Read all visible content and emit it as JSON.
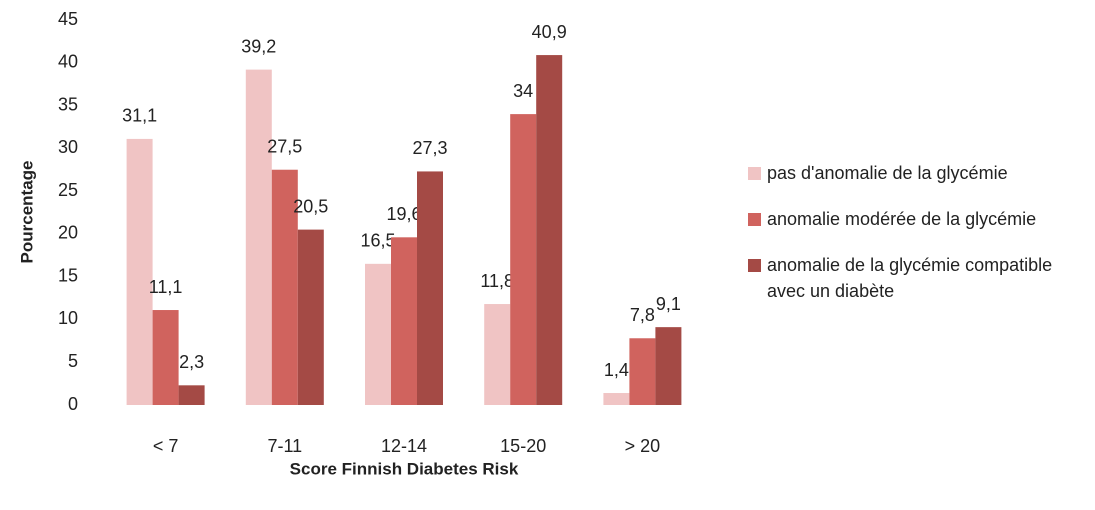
{
  "chart_data": {
    "type": "bar",
    "x_label": "Score Finnish Diabetes Risk",
    "y_label": "Pourcentage",
    "categories": [
      "< 7",
      "7-11",
      "12-14",
      "15-20",
      "> 20"
    ],
    "series": [
      {
        "name": "pas d'anomalie de la glycémie",
        "color": "#f0c4c4",
        "values": [
          31.1,
          39.2,
          16.5,
          11.8,
          1.4
        ],
        "value_labels": [
          "31,1",
          "39,2",
          "16,5",
          "11,8",
          "1,4"
        ]
      },
      {
        "name": "anomalie modérée de la glycémie",
        "color": "#d0635e",
        "values": [
          11.1,
          27.5,
          19.6,
          34,
          7.8
        ],
        "value_labels": [
          "11,1",
          "27,5",
          "19,6",
          "34",
          "7,8"
        ]
      },
      {
        "name": "anomalie de la glycémie compatible avec un diabète",
        "color": "#a44a45",
        "values": [
          2.3,
          20.5,
          27.3,
          40.9,
          9.1
        ],
        "value_labels": [
          "2,3",
          "20,5",
          "27,3",
          "40,9",
          "9,1"
        ]
      }
    ],
    "ylim": [
      0,
      45
    ],
    "yticks": [
      0,
      5,
      10,
      15,
      20,
      25,
      30,
      35,
      40,
      45
    ],
    "grid": false,
    "legend": "right"
  }
}
